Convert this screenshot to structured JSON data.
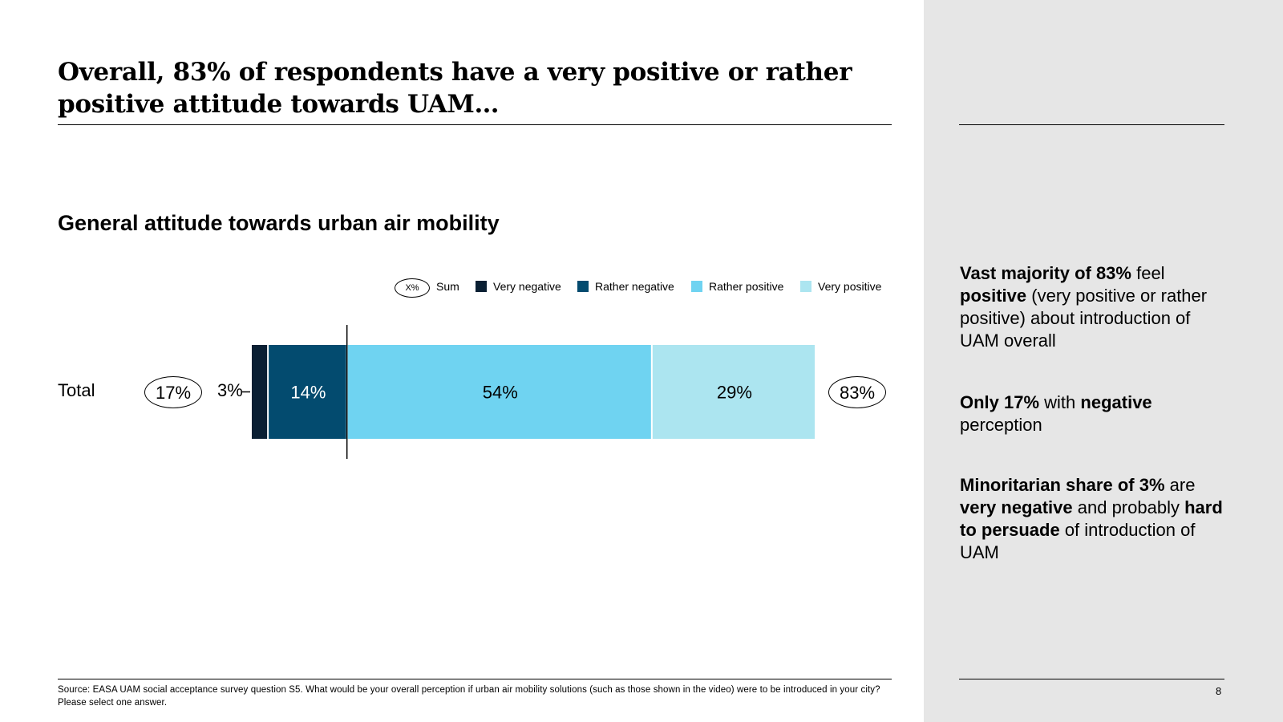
{
  "title": "Overall, 83% of respondents have a very positive or rather positive attitude towards UAM…",
  "subtitle": "General attitude towards urban air mobility",
  "chart_data": {
    "type": "bar",
    "orientation": "horizontal-stacked",
    "title": "General attitude towards urban air mobility",
    "categories": [
      "Total"
    ],
    "series": [
      {
        "name": "Very negative",
        "values": [
          3
        ],
        "color": "#0a1f33",
        "label_inside": false
      },
      {
        "name": "Rather negative",
        "values": [
          14
        ],
        "color": "#034b6f",
        "label_inside": true
      },
      {
        "name": "Rather positive",
        "values": [
          54
        ],
        "color": "#6fd3f1",
        "label_inside": true
      },
      {
        "name": "Very positive",
        "values": [
          29
        ],
        "color": "#ace5f0",
        "label_inside": true
      }
    ],
    "xlim": [
      0,
      100
    ],
    "sums": {
      "negative": "17%",
      "positive": "83%"
    },
    "external_label": "3%",
    "legend": {
      "sum_symbol": "X%",
      "sum_label": "Sum",
      "items": [
        "Very negative",
        "Rather negative",
        "Rather positive",
        "Very positive"
      ]
    }
  },
  "sidebar": {
    "point1": {
      "b1": "Vast majority of 83%",
      "t1": " feel ",
      "b2": "positive",
      "t2": " (very positive or rather positive) about introduction of UAM overall"
    },
    "point2": {
      "b1": "Only 17%",
      "t1": " with ",
      "b2": "negative",
      "t2": " perception"
    },
    "point3": {
      "b1": "Minoritarian share of 3%",
      "t1": " are ",
      "b2": "very negative",
      "t2": " and probably ",
      "b3": "hard to persuade",
      "t3": " of introduction of UAM"
    }
  },
  "source": "Source: EASA UAM social acceptance survey question S5. What would be your overall perception if urban air mobility solutions (such as those shown in the video) were to be introduced in your city? Please select one answer.",
  "page_number": "8"
}
